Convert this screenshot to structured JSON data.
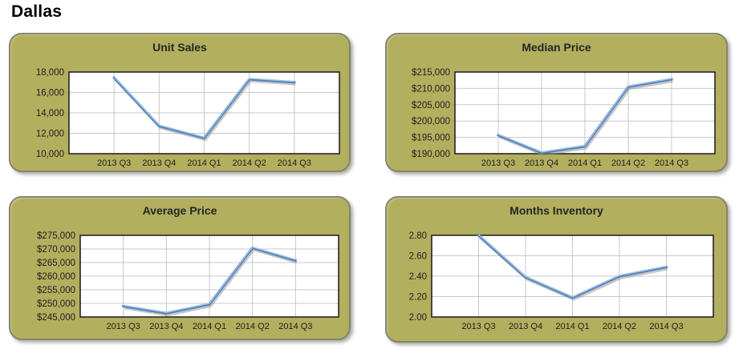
{
  "page_title": "Dallas",
  "colors": {
    "panel_background": "#b2af5e",
    "panel_border": "#84846f",
    "plot_background": "#ffffff",
    "gridline": "#c8c8c8",
    "plot_border": "#1a1a1a",
    "series_line": "#4f81bd",
    "series_highlight": "#a8c8e8",
    "series_shadow": "#8f8f8f",
    "label_text": "#1f1f1f"
  },
  "chart_data": [
    {
      "type": "line",
      "title": "Unit Sales",
      "categories": [
        "2013 Q3",
        "2013 Q4",
        "2014 Q1",
        "2014 Q2",
        "2014 Q3"
      ],
      "values": [
        17450,
        12720,
        11550,
        17300,
        17000
      ],
      "ylim": [
        10000,
        18000
      ],
      "ytick_labels": [
        "18,000",
        "16,000",
        "14,000",
        "12,000",
        "10,000"
      ],
      "xlabel": "",
      "ylabel": "",
      "grid": "on",
      "legend": "none"
    },
    {
      "type": "line",
      "title": "Median Price",
      "categories": [
        "2013 Q3",
        "2013 Q4",
        "2014 Q1",
        "2014 Q2",
        "2014 Q3"
      ],
      "values": [
        195700,
        190300,
        192300,
        210500,
        212800
      ],
      "ylim": [
        190000,
        215000
      ],
      "ytick_labels": [
        "$215,000",
        "$210,000",
        "$205,000",
        "$200,000",
        "$195,000",
        "$190,000"
      ],
      "xlabel": "",
      "ylabel": "",
      "grid": "on",
      "legend": "none"
    },
    {
      "type": "line",
      "title": "Average Price",
      "categories": [
        "2013 Q3",
        "2013 Q4",
        "2014 Q1",
        "2014 Q2",
        "2014 Q3"
      ],
      "values": [
        249000,
        246400,
        249700,
        270400,
        265800
      ],
      "ylim": [
        245000,
        275000
      ],
      "ytick_labels": [
        "$275,000",
        "$270,000",
        "$265,000",
        "$260,000",
        "$255,000",
        "$250,000",
        "$245,000"
      ],
      "xlabel": "",
      "ylabel": "",
      "grid": "on",
      "legend": "none"
    },
    {
      "type": "line",
      "title": "Months Inventory",
      "categories": [
        "2013 Q3",
        "2013 Q4",
        "2014 Q1",
        "2014 Q2",
        "2014 Q3"
      ],
      "values": [
        2.8,
        2.39,
        2.19,
        2.4,
        2.49
      ],
      "ylim": [
        2.0,
        2.8
      ],
      "ytick_labels": [
        "2.80",
        "2.60",
        "2.40",
        "2.20",
        "2.00"
      ],
      "xlabel": "",
      "ylabel": "",
      "grid": "on",
      "legend": "none"
    }
  ]
}
